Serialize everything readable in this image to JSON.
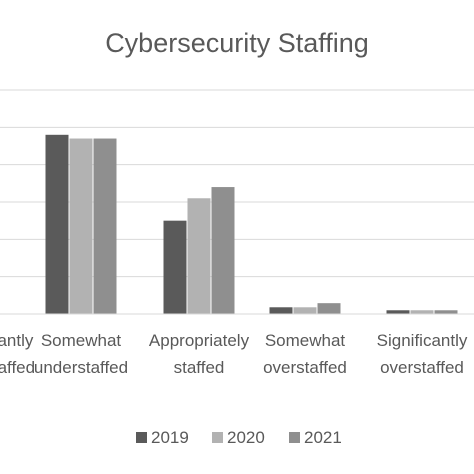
{
  "chart_data": {
    "type": "bar",
    "title": "Cybersecurity Staffing",
    "categories": [
      [
        "Significantly",
        "understaffed"
      ],
      [
        "Somewhat",
        "understaffed"
      ],
      [
        "Appropriately",
        "staffed"
      ],
      [
        "Somewhat",
        "overstaffed"
      ],
      [
        "Significantly",
        "overstaffed"
      ]
    ],
    "series": [
      {
        "name": "2019",
        "color": "#5a5a5a",
        "values": [
          null,
          48,
          25,
          1.8,
          1.0
        ]
      },
      {
        "name": "2020",
        "color": "#b2b2b2",
        "values": [
          null,
          47,
          31,
          1.8,
          1.0
        ]
      },
      {
        "name": "2021",
        "color": "#8f8f8f",
        "values": [
          null,
          47,
          34,
          2.9,
          1.0
        ]
      }
    ],
    "ylim": [
      0,
      60
    ],
    "gridlines": true,
    "legend": "bottom"
  }
}
